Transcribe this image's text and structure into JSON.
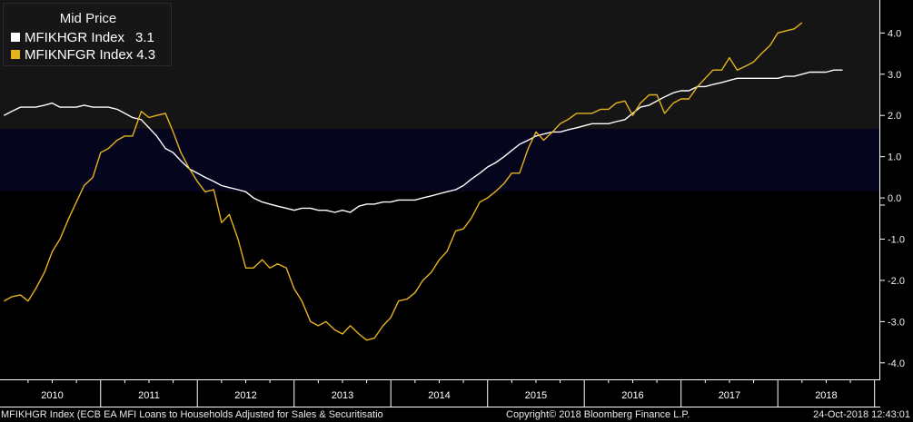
{
  "legend": {
    "title": "Mid Price",
    "entries": [
      {
        "label": "MFIKHGR Index",
        "last": "3.1",
        "color": "#ffffff"
      },
      {
        "label": "MFIKNFGR Index",
        "last": "4.3",
        "color": "#e6b31e"
      }
    ]
  },
  "footer": {
    "series_desc": "MFIKHGR Index (ECB EA MFI Loans to Households Adjusted for Sales & Securitisatio",
    "copyright": "Copyright© 2018 Bloomberg Finance L.P.",
    "timestamp": "24-Oct-2018 12:43:01"
  },
  "colors": {
    "background": "#000000",
    "band_upper": "#151515",
    "band_middle": "#05051e",
    "households": "#ffffff",
    "nfc": "#e6b31e",
    "axis": "#ffffff"
  },
  "chart_data": {
    "type": "line",
    "title": "Mid Price",
    "xlabel": "",
    "ylabel": "",
    "ylim": [
      -4.4,
      4.8
    ],
    "yticks": [
      "4.0",
      "3.0",
      "2.0",
      "1.0",
      "0.0",
      "-1.0",
      "-2.0",
      "-3.0",
      "-4.0"
    ],
    "ytick_values": [
      4,
      3,
      2,
      1,
      0,
      -1,
      -2,
      -3,
      -4
    ],
    "year_labels": [
      "2010",
      "2011",
      "2012",
      "2013",
      "2014",
      "2015",
      "2016",
      "2017",
      "2018"
    ],
    "x_start": 2009.96,
    "x_end": 2019.05,
    "grid": false,
    "legend_position": "top-left",
    "bands": [
      {
        "from": 1.67,
        "to": 4.8,
        "color_key": "band_upper"
      },
      {
        "from": 0.15,
        "to": 1.67,
        "color_key": "band_middle"
      }
    ],
    "series": [
      {
        "name": "MFIKHGR Index",
        "color_key": "households",
        "points": [
          [
            2010.0,
            2.0
          ],
          [
            2010.08,
            2.1
          ],
          [
            2010.17,
            2.2
          ],
          [
            2010.25,
            2.2
          ],
          [
            2010.33,
            2.2
          ],
          [
            2010.42,
            2.25
          ],
          [
            2010.5,
            2.3
          ],
          [
            2010.58,
            2.2
          ],
          [
            2010.67,
            2.2
          ],
          [
            2010.75,
            2.2
          ],
          [
            2010.83,
            2.25
          ],
          [
            2010.92,
            2.2
          ],
          [
            2011.0,
            2.2
          ],
          [
            2011.08,
            2.2
          ],
          [
            2011.17,
            2.15
          ],
          [
            2011.25,
            2.05
          ],
          [
            2011.33,
            1.95
          ],
          [
            2011.42,
            1.9
          ],
          [
            2011.5,
            1.7
          ],
          [
            2011.58,
            1.5
          ],
          [
            2011.67,
            1.2
          ],
          [
            2011.75,
            1.1
          ],
          [
            2011.83,
            0.9
          ],
          [
            2011.92,
            0.7
          ],
          [
            2012.0,
            0.6
          ],
          [
            2012.08,
            0.5
          ],
          [
            2012.17,
            0.4
          ],
          [
            2012.25,
            0.3
          ],
          [
            2012.33,
            0.25
          ],
          [
            2012.42,
            0.2
          ],
          [
            2012.5,
            0.15
          ],
          [
            2012.58,
            0.0
          ],
          [
            2012.67,
            -0.1
          ],
          [
            2012.75,
            -0.15
          ],
          [
            2012.83,
            -0.2
          ],
          [
            2012.92,
            -0.25
          ],
          [
            2013.0,
            -0.3
          ],
          [
            2013.08,
            -0.25
          ],
          [
            2013.17,
            -0.25
          ],
          [
            2013.25,
            -0.3
          ],
          [
            2013.33,
            -0.3
          ],
          [
            2013.42,
            -0.35
          ],
          [
            2013.5,
            -0.3
          ],
          [
            2013.58,
            -0.35
          ],
          [
            2013.67,
            -0.2
          ],
          [
            2013.75,
            -0.15
          ],
          [
            2013.83,
            -0.15
          ],
          [
            2013.92,
            -0.1
          ],
          [
            2014.0,
            -0.1
          ],
          [
            2014.08,
            -0.05
          ],
          [
            2014.17,
            -0.05
          ],
          [
            2014.25,
            -0.05
          ],
          [
            2014.33,
            0.0
          ],
          [
            2014.42,
            0.05
          ],
          [
            2014.5,
            0.1
          ],
          [
            2014.58,
            0.15
          ],
          [
            2014.67,
            0.2
          ],
          [
            2014.75,
            0.3
          ],
          [
            2014.83,
            0.45
          ],
          [
            2014.92,
            0.6
          ],
          [
            2015.0,
            0.75
          ],
          [
            2015.08,
            0.85
          ],
          [
            2015.17,
            1.0
          ],
          [
            2015.25,
            1.15
          ],
          [
            2015.33,
            1.3
          ],
          [
            2015.42,
            1.4
          ],
          [
            2015.5,
            1.5
          ],
          [
            2015.58,
            1.55
          ],
          [
            2015.67,
            1.6
          ],
          [
            2015.75,
            1.6
          ],
          [
            2015.83,
            1.65
          ],
          [
            2015.92,
            1.7
          ],
          [
            2016.0,
            1.75
          ],
          [
            2016.08,
            1.8
          ],
          [
            2016.17,
            1.8
          ],
          [
            2016.25,
            1.8
          ],
          [
            2016.33,
            1.85
          ],
          [
            2016.42,
            1.9
          ],
          [
            2016.5,
            2.05
          ],
          [
            2016.58,
            2.2
          ],
          [
            2016.67,
            2.25
          ],
          [
            2016.75,
            2.35
          ],
          [
            2016.83,
            2.45
          ],
          [
            2016.92,
            2.55
          ],
          [
            2017.0,
            2.6
          ],
          [
            2017.08,
            2.6
          ],
          [
            2017.17,
            2.7
          ],
          [
            2017.25,
            2.7
          ],
          [
            2017.33,
            2.75
          ],
          [
            2017.42,
            2.8
          ],
          [
            2017.5,
            2.85
          ],
          [
            2017.58,
            2.9
          ],
          [
            2017.67,
            2.9
          ],
          [
            2017.75,
            2.9
          ],
          [
            2017.83,
            2.9
          ],
          [
            2017.92,
            2.9
          ],
          [
            2018.0,
            2.9
          ],
          [
            2018.08,
            2.95
          ],
          [
            2018.17,
            2.95
          ],
          [
            2018.25,
            3.0
          ],
          [
            2018.33,
            3.05
          ],
          [
            2018.42,
            3.05
          ],
          [
            2018.5,
            3.05
          ],
          [
            2018.58,
            3.1
          ],
          [
            2018.67,
            3.1
          ]
        ]
      },
      {
        "name": "MFIKNFGR Index",
        "color_key": "nfc",
        "points": [
          [
            2010.0,
            -2.5
          ],
          [
            2010.08,
            -2.4
          ],
          [
            2010.17,
            -2.35
          ],
          [
            2010.25,
            -2.5
          ],
          [
            2010.33,
            -2.2
          ],
          [
            2010.42,
            -1.8
          ],
          [
            2010.5,
            -1.3
          ],
          [
            2010.58,
            -1.0
          ],
          [
            2010.67,
            -0.5
          ],
          [
            2010.75,
            -0.1
          ],
          [
            2010.83,
            0.3
          ],
          [
            2010.92,
            0.5
          ],
          [
            2011.0,
            1.1
          ],
          [
            2011.08,
            1.2
          ],
          [
            2011.17,
            1.4
          ],
          [
            2011.25,
            1.5
          ],
          [
            2011.33,
            1.5
          ],
          [
            2011.42,
            2.1
          ],
          [
            2011.5,
            1.95
          ],
          [
            2011.58,
            2.0
          ],
          [
            2011.67,
            2.05
          ],
          [
            2011.75,
            1.6
          ],
          [
            2011.83,
            1.1
          ],
          [
            2011.92,
            0.7
          ],
          [
            2012.0,
            0.4
          ],
          [
            2012.08,
            0.15
          ],
          [
            2012.17,
            0.2
          ],
          [
            2012.25,
            -0.6
          ],
          [
            2012.33,
            -0.4
          ],
          [
            2012.42,
            -1.0
          ],
          [
            2012.5,
            -1.7
          ],
          [
            2012.58,
            -1.7
          ],
          [
            2012.67,
            -1.5
          ],
          [
            2012.75,
            -1.7
          ],
          [
            2012.83,
            -1.6
          ],
          [
            2012.92,
            -1.7
          ],
          [
            2013.0,
            -2.2
          ],
          [
            2013.08,
            -2.5
          ],
          [
            2013.17,
            -3.0
          ],
          [
            2013.25,
            -3.1
          ],
          [
            2013.33,
            -3.0
          ],
          [
            2013.42,
            -3.2
          ],
          [
            2013.5,
            -3.3
          ],
          [
            2013.58,
            -3.1
          ],
          [
            2013.67,
            -3.3
          ],
          [
            2013.75,
            -3.45
          ],
          [
            2013.83,
            -3.4
          ],
          [
            2013.92,
            -3.1
          ],
          [
            2014.0,
            -2.9
          ],
          [
            2014.08,
            -2.5
          ],
          [
            2014.17,
            -2.45
          ],
          [
            2014.25,
            -2.3
          ],
          [
            2014.33,
            -2.0
          ],
          [
            2014.42,
            -1.8
          ],
          [
            2014.5,
            -1.5
          ],
          [
            2014.58,
            -1.3
          ],
          [
            2014.67,
            -0.8
          ],
          [
            2014.75,
            -0.75
          ],
          [
            2014.83,
            -0.5
          ],
          [
            2014.92,
            -0.1
          ],
          [
            2015.0,
            0.0
          ],
          [
            2015.08,
            0.15
          ],
          [
            2015.17,
            0.35
          ],
          [
            2015.25,
            0.6
          ],
          [
            2015.33,
            0.6
          ],
          [
            2015.42,
            1.2
          ],
          [
            2015.5,
            1.6
          ],
          [
            2015.58,
            1.4
          ],
          [
            2015.67,
            1.6
          ],
          [
            2015.75,
            1.8
          ],
          [
            2015.83,
            1.9
          ],
          [
            2015.92,
            2.05
          ],
          [
            2016.0,
            2.05
          ],
          [
            2016.08,
            2.05
          ],
          [
            2016.17,
            2.15
          ],
          [
            2016.25,
            2.15
          ],
          [
            2016.33,
            2.3
          ],
          [
            2016.42,
            2.35
          ],
          [
            2016.5,
            2.0
          ],
          [
            2016.58,
            2.3
          ],
          [
            2016.67,
            2.5
          ],
          [
            2016.75,
            2.5
          ],
          [
            2016.83,
            2.05
          ],
          [
            2016.92,
            2.3
          ],
          [
            2017.0,
            2.4
          ],
          [
            2017.08,
            2.4
          ],
          [
            2017.17,
            2.7
          ],
          [
            2017.25,
            2.9
          ],
          [
            2017.33,
            3.1
          ],
          [
            2017.42,
            3.1
          ],
          [
            2017.5,
            3.4
          ],
          [
            2017.58,
            3.1
          ],
          [
            2017.67,
            3.2
          ],
          [
            2017.75,
            3.3
          ],
          [
            2017.83,
            3.5
          ],
          [
            2017.92,
            3.7
          ],
          [
            2018.0,
            4.0
          ],
          [
            2018.08,
            4.05
          ],
          [
            2018.17,
            4.1
          ],
          [
            2018.25,
            4.25
          ]
        ]
      }
    ]
  }
}
